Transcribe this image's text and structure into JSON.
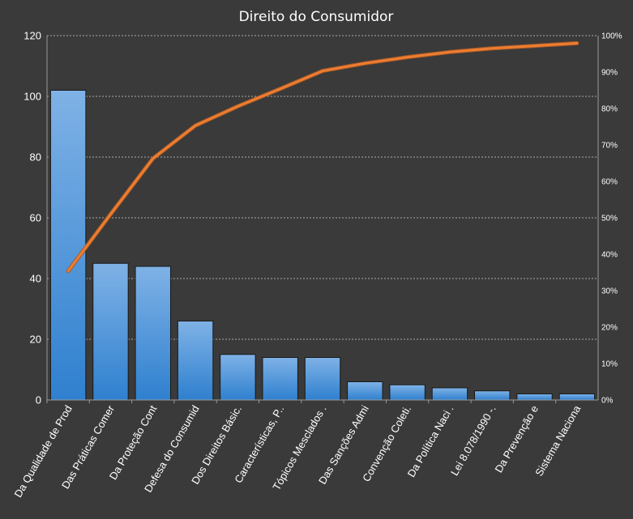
{
  "chart_data": {
    "type": "bar",
    "title": "Direito do Consumidor",
    "categories": [
      "Da Qualidade de Prod",
      "Das Práticas Comer",
      "Da Proteção Cont",
      "Defesa do Consumid",
      "Dos Direitos Básic.",
      "Características, P..",
      "Tópicos Mesclados .",
      "Das Sanções Admi",
      "Convenção Coleti.",
      "Da Política Naci .",
      "Lei 8.078/1990 -.",
      "Da Prevenção e",
      "Sistema Naciona"
    ],
    "series": [
      {
        "values": [
          102,
          45,
          44,
          26,
          15,
          14,
          14,
          6,
          5,
          4,
          3,
          2,
          2
        ]
      },
      {
        "values": [
          35.4,
          51.0,
          66.3,
          75.3,
          80.6,
          85.4,
          90.3,
          92.4,
          94.1,
          95.5,
          96.5,
          97.2,
          97.9
        ]
      }
    ],
    "ylim": [
      0,
      120
    ],
    "yticks": [
      "0",
      "20",
      "40",
      "60",
      "80",
      "100",
      "120"
    ],
    "y2lim": [
      0,
      100
    ],
    "y2ticks": [
      "0%",
      "10%",
      "20%",
      "30%",
      "40%",
      "50%",
      "60%",
      "70%",
      "80%",
      "90%",
      "100%"
    ],
    "grid": true,
    "colors": {
      "bar_top": "#7fb2e6",
      "bar_bottom": "#2f80cf",
      "line": "#ed7d31",
      "line_glow": "#a85a27",
      "background": "#3a3a3a"
    }
  }
}
